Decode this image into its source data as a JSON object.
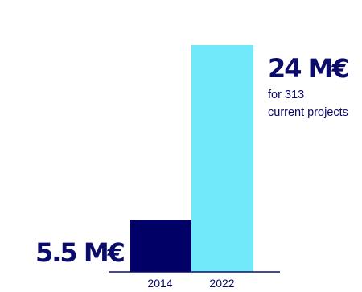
{
  "chart_data": {
    "type": "bar",
    "categories": [
      "2014",
      "2022"
    ],
    "values": [
      5.5,
      24
    ],
    "ylim": [
      0,
      24
    ],
    "grid": false,
    "colors": [
      "#010066",
      "#72E8FB"
    ],
    "text_color": "#0B0B6B",
    "annotations": {
      "value_2014": "5.5 M€",
      "value_2022": "24 M€",
      "note_2022_line1": "for 313",
      "note_2022_line2": "current projects"
    }
  }
}
